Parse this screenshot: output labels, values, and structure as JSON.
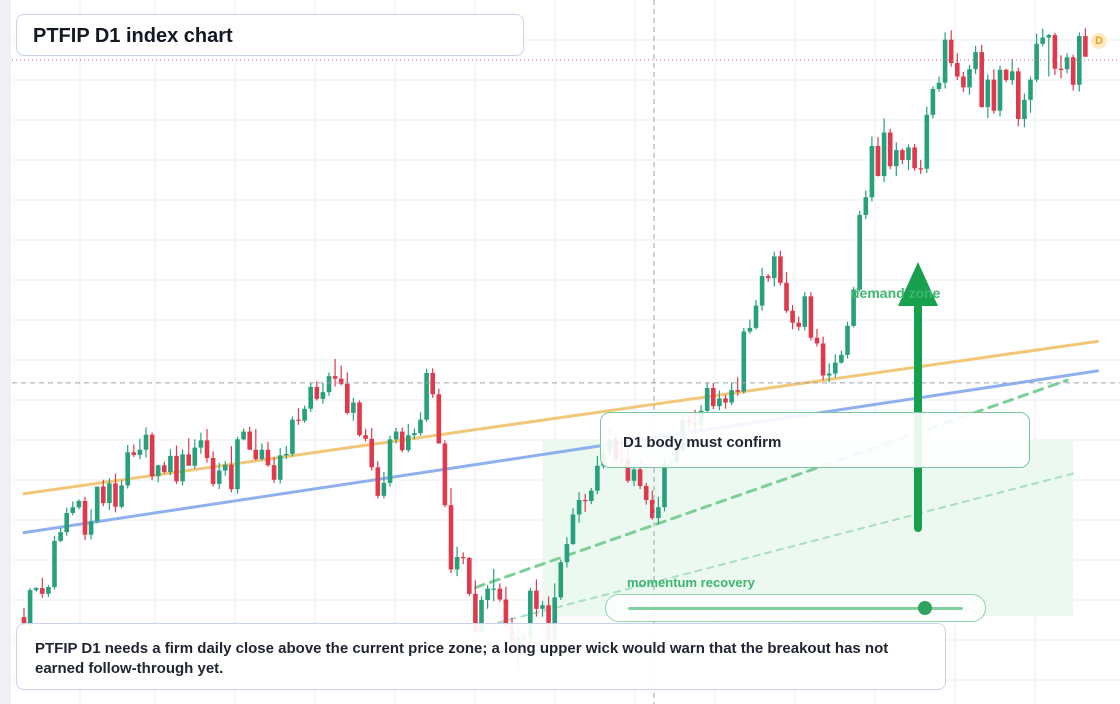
{
  "header": {
    "title": "PTFIP D1 index chart",
    "badge": "D"
  },
  "annotations": {
    "confirm_text": "D1 body must confirm",
    "demand_label": "demand zone",
    "momentum_label": "momentum recovery",
    "momentum_level": 0.88,
    "note_text": "PTFIP D1 needs a firm daily close above the current price zone; a long upper wick would warn that the breakout has not earned follow-through yet."
  },
  "colors": {
    "up": "#26a17b",
    "down": "#e0394e",
    "resistance_line": "#f3c77a",
    "support_line": "#8fb0ee",
    "zone_fill": "#e9f8ee",
    "arrow": "#17a04e",
    "grid": "#e9ecf1",
    "price_line": "#d26b6b"
  },
  "chart_data": {
    "type": "candlestick",
    "title": "PTFIP D1 index chart",
    "timeframe": "D1",
    "ohlc_open": [
      1248,
      1232,
      1300,
      1304,
      1293,
      1306,
      1395,
      1412,
      1449,
      1460,
      1472,
      1407,
      1433,
      1500,
      1468,
      1506,
      1461,
      1502,
      1566,
      1561,
      1571,
      1600,
      1520,
      1541,
      1528,
      1559,
      1510,
      1562,
      1540,
      1575,
      1589,
      1555,
      1505,
      1531,
      1542,
      1495,
      1591,
      1606,
      1571,
      1553,
      1571,
      1541,
      1513,
      1560,
      1563,
      1629,
      1627,
      1650,
      1692,
      1669,
      1682,
      1713,
      1708,
      1698,
      1642,
      1662,
      1599,
      1592,
      1537,
      1482,
      1507,
      1591,
      1606,
      1570,
      1599,
      1603,
      1629,
      1719,
      1678,
      1583,
      1464,
      1340,
      1364,
      1362,
      1293,
      1220,
      1281,
      1303,
      1303,
      1282,
      1231,
      1183,
      1208,
      1209,
      1299,
      1264,
      1271,
      1206,
      1286,
      1354,
      1389,
      1446,
      1474,
      1472,
      1492,
      1540,
      1567,
      1592,
      1553,
      1552,
      1511,
      1533,
      1501,
      1474,
      1439,
      1460,
      1544,
      1546,
      1570,
      1628,
      1624,
      1619,
      1646,
      1690,
      1655,
      1670,
      1662,
      1686,
      1683,
      1799,
      1806,
      1849,
      1906,
      1902,
      1944,
      1893,
      1839,
      1816,
      1808,
      1867,
      1787,
      1776,
      1714,
      1718,
      1739,
      1754,
      1810,
      1880,
      2024,
      2058,
      2157,
      2099,
      2183,
      2118,
      2149,
      2130,
      2154,
      2114,
      2113,
      2217,
      2267,
      2279,
      2362,
      2317,
      2291,
      2270,
      2305,
      2338,
      2232,
      2285,
      2225,
      2304,
      2284,
      2301,
      2209,
      2246,
      2285,
      2354,
      2366,
      2371,
      2306,
      2305,
      2328,
      2275,
      2369
    ],
    "ohlc_high": [
      1266,
      1304,
      1306,
      1324,
      1310,
      1405,
      1420,
      1459,
      1471,
      1475,
      1480,
      1456,
      1500,
      1513,
      1516,
      1525,
      1512,
      1580,
      1581,
      1592,
      1614,
      1604,
      1542,
      1548,
      1572,
      1579,
      1572,
      1593,
      1591,
      1604,
      1611,
      1568,
      1546,
      1549,
      1578,
      1596,
      1612,
      1615,
      1611,
      1583,
      1586,
      1557,
      1574,
      1578,
      1635,
      1651,
      1656,
      1700,
      1703,
      1700,
      1720,
      1746,
      1733,
      1720,
      1671,
      1666,
      1611,
      1613,
      1549,
      1528,
      1598,
      1613,
      1614,
      1621,
      1612,
      1643,
      1727,
      1728,
      1689,
      1589,
      1497,
      1384,
      1373,
      1364,
      1319,
      1288,
      1310,
      1341,
      1313,
      1307,
      1247,
      1232,
      1220,
      1305,
      1321,
      1279,
      1288,
      1313,
      1359,
      1402,
      1458,
      1489,
      1486,
      1497,
      1559,
      1577,
      1615,
      1600,
      1593,
      1575,
      1545,
      1551,
      1507,
      1492,
      1480,
      1554,
      1554,
      1581,
      1641,
      1637,
      1648,
      1657,
      1701,
      1700,
      1685,
      1677,
      1701,
      1711,
      1806,
      1822,
      1860,
      1922,
      1910,
      1953,
      1955,
      1914,
      1850,
      1828,
      1875,
      1875,
      1804,
      1789,
      1738,
      1755,
      1762,
      1818,
      1885,
      2032,
      2071,
      2175,
      2174,
      2210,
      2190,
      2164,
      2152,
      2160,
      2161,
      2130,
      2233,
      2272,
      2291,
      2376,
      2380,
      2336,
      2300,
      2313,
      2350,
      2352,
      2295,
      2305,
      2312,
      2306,
      2325,
      2308,
      2258,
      2291,
      2374,
      2383,
      2373,
      2375,
      2332,
      2336,
      2333,
      2376,
      2384
    ],
    "ohlc_low": [
      1228,
      1222,
      1297,
      1285,
      1287,
      1301,
      1393,
      1405,
      1444,
      1456,
      1397,
      1398,
      1429,
      1462,
      1455,
      1450,
      1458,
      1496,
      1557,
      1553,
      1556,
      1512,
      1508,
      1525,
      1522,
      1505,
      1502,
      1541,
      1534,
      1563,
      1546,
      1500,
      1495,
      1521,
      1489,
      1486,
      1589,
      1571,
      1550,
      1550,
      1538,
      1507,
      1506,
      1553,
      1558,
      1619,
      1623,
      1644,
      1666,
      1660,
      1675,
      1693,
      1695,
      1639,
      1627,
      1596,
      1587,
      1531,
      1477,
      1477,
      1500,
      1583,
      1566,
      1566,
      1591,
      1598,
      1625,
      1671,
      1583,
      1460,
      1333,
      1327,
      1350,
      1289,
      1215,
      1216,
      1264,
      1279,
      1278,
      1223,
      1172,
      1145,
      1201,
      1191,
      1249,
      1249,
      1197,
      1200,
      1281,
      1344,
      1387,
      1430,
      1451,
      1466,
      1485,
      1535,
      1559,
      1547,
      1543,
      1507,
      1501,
      1495,
      1465,
      1436,
      1427,
      1452,
      1540,
      1544,
      1565,
      1608,
      1608,
      1611,
      1643,
      1649,
      1647,
      1650,
      1657,
      1675,
      1679,
      1795,
      1803,
      1839,
      1895,
      1886,
      1888,
      1835,
      1803,
      1801,
      1801,
      1782,
      1770,
      1705,
      1701,
      1710,
      1737,
      1747,
      1807,
      1876,
      2016,
      2050,
      2098,
      2087,
      2112,
      2099,
      2122,
      2111,
      2109,
      2103,
      2105,
      2210,
      2262,
      2268,
      2310,
      2284,
      2261,
      2256,
      2296,
      2231,
      2211,
      2219,
      2214,
      2280,
      2275,
      2195,
      2193,
      2221,
      2280,
      2349,
      2291,
      2294,
      2287,
      2297,
      2264,
      2262,
      2359
    ],
    "ohlc_close": [
      1232,
      1300,
      1304,
      1293,
      1306,
      1395,
      1412,
      1449,
      1460,
      1472,
      1407,
      1433,
      1500,
      1468,
      1506,
      1461,
      1502,
      1566,
      1561,
      1571,
      1600,
      1520,
      1541,
      1528,
      1559,
      1510,
      1562,
      1540,
      1575,
      1589,
      1555,
      1505,
      1531,
      1542,
      1495,
      1591,
      1606,
      1571,
      1553,
      1571,
      1541,
      1513,
      1560,
      1563,
      1629,
      1627,
      1650,
      1692,
      1669,
      1682,
      1713,
      1708,
      1698,
      1642,
      1662,
      1599,
      1592,
      1537,
      1482,
      1507,
      1591,
      1606,
      1570,
      1599,
      1603,
      1629,
      1719,
      1678,
      1583,
      1464,
      1340,
      1364,
      1362,
      1293,
      1220,
      1281,
      1303,
      1303,
      1282,
      1231,
      1183,
      1208,
      1209,
      1299,
      1264,
      1271,
      1206,
      1286,
      1354,
      1389,
      1446,
      1474,
      1472,
      1492,
      1540,
      1567,
      1592,
      1553,
      1552,
      1511,
      1533,
      1501,
      1474,
      1439,
      1460,
      1544,
      1546,
      1570,
      1628,
      1624,
      1619,
      1646,
      1690,
      1655,
      1670,
      1662,
      1686,
      1683,
      1799,
      1806,
      1849,
      1906,
      1902,
      1944,
      1893,
      1839,
      1816,
      1808,
      1867,
      1787,
      1776,
      1714,
      1718,
      1739,
      1754,
      1810,
      1880,
      2024,
      2058,
      2157,
      2099,
      2183,
      2118,
      2149,
      2130,
      2154,
      2114,
      2113,
      2217,
      2267,
      2279,
      2362,
      2317,
      2291,
      2270,
      2305,
      2338,
      2232,
      2285,
      2225,
      2304,
      2284,
      2301,
      2209,
      2246,
      2285,
      2354,
      2366,
      2371,
      2306,
      2305,
      2328,
      2275,
      2369,
      2329
    ],
    "current_price": 1700,
    "levels": {
      "resistance_line": [
        [
          0,
          1486
        ],
        [
          176,
          1780
        ]
      ],
      "support_line": [
        [
          0,
          1411
        ],
        [
          176,
          1723
        ]
      ],
      "trend_channel_upper": [
        [
          74,
          1305
        ],
        [
          171,
          1705
        ]
      ],
      "trend_channel_lower": [
        [
          72,
          1220
        ],
        [
          172,
          1525
        ]
      ],
      "demand_zone": {
        "from_index": 85,
        "to_index": 172,
        "low": 1250,
        "high": 1590
      }
    },
    "grid": true
  }
}
